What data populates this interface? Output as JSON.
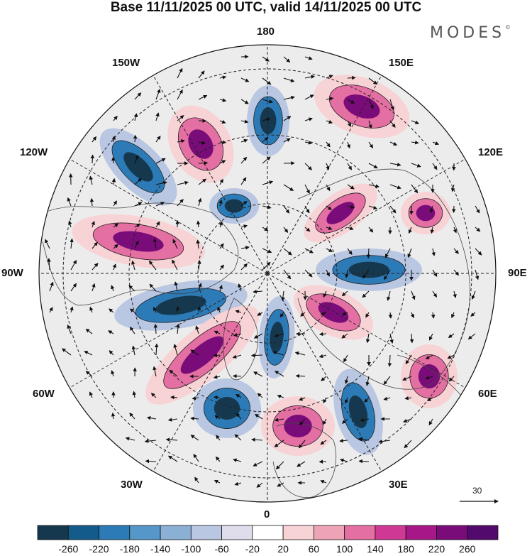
{
  "title": "Base 11/11/2025 00 UTC, valid 14/11/2025 00 UTC",
  "logo": "MODES",
  "logo_mark": "©",
  "longitude_labels": {
    "n180": "180",
    "w150": "150W",
    "e150": "150E",
    "w120": "120W",
    "e120": "120E",
    "w90": "90W",
    "e90": "90E",
    "w60": "60W",
    "e60": "60E",
    "w30": "30W",
    "e30": "30E",
    "s0": "0"
  },
  "vector_scale_label": "30",
  "colorbar": {
    "ticks": [
      "-260",
      "-220",
      "-180",
      "-140",
      "-100",
      "-60",
      "-20",
      "20",
      "60",
      "100",
      "140",
      "180",
      "220",
      "260"
    ],
    "colors": [
      "#16384f",
      "#135b8a",
      "#2c7ab6",
      "#5697c9",
      "#8bb0d6",
      "#b9c7e2",
      "#dfdcec",
      "#ffffff",
      "#f7d3d6",
      "#eea4b6",
      "#e46fa2",
      "#cf3894",
      "#a71787",
      "#7a0c7a",
      "#520a6c"
    ]
  },
  "colors": {
    "negative_strong": "#16384f",
    "negative_mid": "#2c7ab6",
    "negative_weak": "#b9c7e2",
    "positive_weak": "#f7d3d6",
    "positive_mid": "#e46fa2",
    "positive_strong": "#7a0c7a",
    "neutral": "#ececec"
  }
}
